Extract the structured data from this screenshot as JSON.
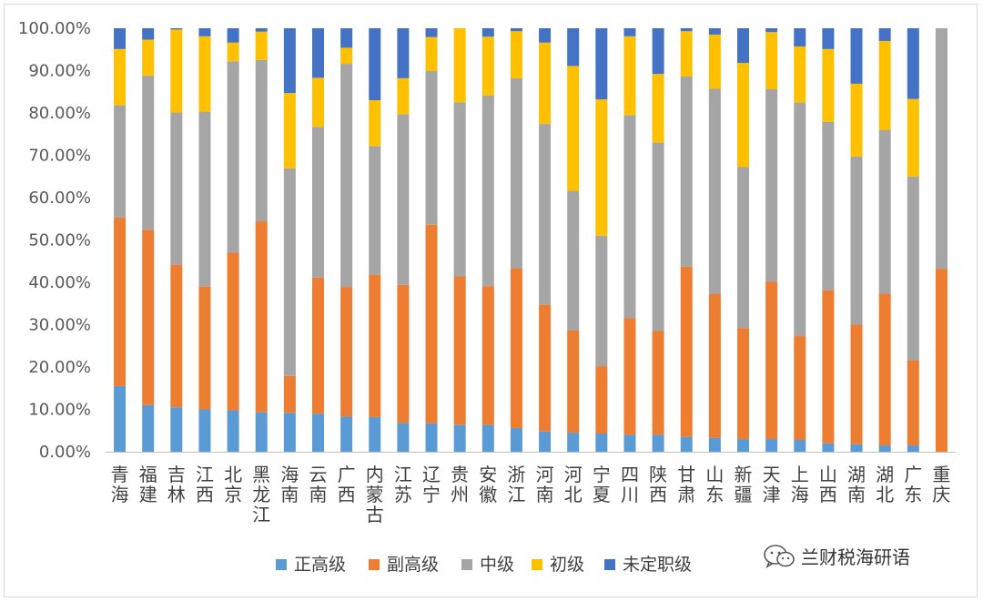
{
  "chart_data": {
    "type": "bar",
    "stacked": true,
    "percent": true,
    "title": "",
    "xlabel": "",
    "ylabel": "",
    "ylim": [
      0,
      100
    ],
    "yticks": [
      "0.00%",
      "10.00%",
      "20.00%",
      "30.00%",
      "40.00%",
      "50.00%",
      "60.00%",
      "70.00%",
      "80.00%",
      "90.00%",
      "100.00%"
    ],
    "grid": false,
    "legend_position": "bottom",
    "categories": [
      "青海",
      "福建",
      "吉林",
      "江西",
      "北京",
      "黑龙江",
      "海南",
      "云南",
      "广西",
      "内蒙古",
      "江苏",
      "辽宁",
      "贵州",
      "安徽",
      "浙江",
      "河南",
      "河北",
      "宁夏",
      "四川",
      "陕西",
      "甘肃",
      "山东",
      "新疆",
      "天津",
      "上海",
      "山西",
      "湖南",
      "湖北",
      "广东",
      "重庆"
    ],
    "series": [
      {
        "name": "正高级",
        "color": "#5b9bd5",
        "values": [
          15.5,
          11.0,
          10.5,
          10.0,
          9.8,
          9.3,
          9.2,
          9.0,
          8.3,
          8.2,
          6.8,
          6.7,
          6.3,
          6.3,
          5.6,
          4.8,
          4.5,
          4.3,
          4.0,
          4.0,
          3.5,
          3.3,
          3.0,
          3.0,
          2.8,
          2.0,
          1.8,
          1.5,
          1.5,
          0.0
        ]
      },
      {
        "name": "副高级",
        "color": "#ed7d31",
        "values": [
          39.8,
          41.4,
          33.6,
          29.0,
          37.2,
          45.1,
          8.7,
          32.1,
          30.6,
          33.6,
          32.6,
          46.9,
          35.1,
          32.8,
          37.7,
          29.9,
          24.1,
          15.9,
          27.5,
          24.5,
          40.2,
          34.0,
          26.2,
          37.1,
          24.5,
          36.1,
          28.2,
          35.8,
          20.1,
          43.2
        ]
      },
      {
        "name": "中级",
        "color": "#a5a5a5",
        "values": [
          26.5,
          36.4,
          36.0,
          41.3,
          45.2,
          38.1,
          49.0,
          35.6,
          52.7,
          30.4,
          40.3,
          36.3,
          41.1,
          45.0,
          44.9,
          42.7,
          33.0,
          30.8,
          48.0,
          44.5,
          44.9,
          48.4,
          38.0,
          45.5,
          55.2,
          39.8,
          39.7,
          38.7,
          43.4,
          56.8
        ]
      },
      {
        "name": "初级",
        "color": "#ffc000",
        "values": [
          13.3,
          8.5,
          19.6,
          17.8,
          4.4,
          6.7,
          17.8,
          11.6,
          3.8,
          10.8,
          8.5,
          8.0,
          17.5,
          13.9,
          11.1,
          19.2,
          29.5,
          32.2,
          18.6,
          16.2,
          10.7,
          12.8,
          24.6,
          13.5,
          13.2,
          17.2,
          17.2,
          21.0,
          18.3,
          0.0
        ]
      },
      {
        "name": "未定职级",
        "color": "#4472c4",
        "values": [
          4.9,
          2.7,
          0.3,
          1.9,
          3.4,
          0.8,
          15.3,
          11.7,
          4.6,
          17.0,
          11.8,
          2.1,
          0.0,
          2.0,
          0.7,
          3.4,
          8.9,
          16.8,
          1.9,
          10.8,
          0.7,
          1.5,
          8.2,
          0.9,
          4.3,
          4.9,
          13.1,
          3.0,
          16.7,
          0.0
        ]
      }
    ]
  },
  "watermark": {
    "text": "兰财税海研语",
    "icon": "wechat-icon"
  }
}
